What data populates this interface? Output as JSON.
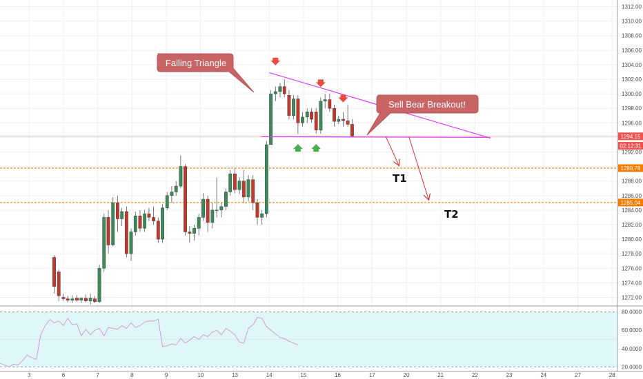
{
  "chart_data": [
    {
      "type": "candlestick",
      "title": "",
      "xlabel": "",
      "ylabel": "",
      "ylim": [
        1271,
        1313
      ],
      "y_ticks": [
        "1272.00",
        "1274.00",
        "1276.00",
        "1278.00",
        "1280.00",
        "1282.00",
        "1284.00",
        "1286.00",
        "1288.00",
        "1290.00",
        "1292.00",
        "1294.00",
        "1296.00",
        "1298.00",
        "1300.00",
        "1302.00",
        "1304.00",
        "1306.00",
        "1308.00",
        "1310.00",
        "1312.00"
      ],
      "x_ticks": [
        {
          "label": "3",
          "day": 3
        },
        {
          "label": "6",
          "day": 6
        },
        {
          "label": "7",
          "day": 7
        },
        {
          "label": "8",
          "day": 8
        },
        {
          "label": "9",
          "day": 9
        },
        {
          "label": "10",
          "day": 10
        },
        {
          "label": "13",
          "day": 13
        },
        {
          "label": "14",
          "day": 14
        },
        {
          "label": "15",
          "day": 15
        },
        {
          "label": "16",
          "day": 16
        },
        {
          "label": "17",
          "day": 17
        },
        {
          "label": "20",
          "day": 20
        },
        {
          "label": "21",
          "day": 21
        },
        {
          "label": "22",
          "day": 22
        },
        {
          "label": "23",
          "day": 23
        },
        {
          "label": "24",
          "day": 24
        },
        {
          "label": "27",
          "day": 27
        },
        {
          "label": "28",
          "day": 28
        }
      ],
      "candles": [
        {
          "t": 2.0,
          "o": 1277.5,
          "h": 1277.8,
          "l": 1272.5,
          "c": 1273.5
        },
        {
          "t": 2.17,
          "o": 1275.5,
          "h": 1275.8,
          "l": 1271.5,
          "c": 1272.2
        },
        {
          "t": 2.34,
          "o": 1272.0,
          "h": 1272.5,
          "l": 1271.5,
          "c": 1271.8
        },
        {
          "t": 2.5,
          "o": 1271.8,
          "h": 1272.2,
          "l": 1271.3,
          "c": 1271.6
        },
        {
          "t": 2.67,
          "o": 1271.6,
          "h": 1272.3,
          "l": 1271.2,
          "c": 1271.8
        },
        {
          "t": 2.84,
          "o": 1271.9,
          "h": 1272.3,
          "l": 1271.4,
          "c": 1271.6
        },
        {
          "t": 3.0,
          "o": 1271.6,
          "h": 1272.0,
          "l": 1271.2,
          "c": 1271.9
        },
        {
          "t": 3.17,
          "o": 1271.9,
          "h": 1272.4,
          "l": 1271.3,
          "c": 1271.5
        },
        {
          "t": 3.34,
          "o": 1271.5,
          "h": 1272.5,
          "l": 1271.0,
          "c": 1271.9
        },
        {
          "t": 3.5,
          "o": 1271.8,
          "h": 1272.2,
          "l": 1271.2,
          "c": 1271.4
        },
        {
          "t": 3.67,
          "o": 1271.4,
          "h": 1276.5,
          "l": 1271.2,
          "c": 1276.0
        },
        {
          "t": 3.84,
          "o": 1276.0,
          "h": 1283.5,
          "l": 1275.5,
          "c": 1283.0
        },
        {
          "t": 4.0,
          "o": 1283.0,
          "h": 1284.0,
          "l": 1278.0,
          "c": 1279.2
        },
        {
          "t": 4.17,
          "o": 1279.2,
          "h": 1285.8,
          "l": 1279.0,
          "c": 1285.0
        },
        {
          "t": 4.34,
          "o": 1285.0,
          "h": 1286.0,
          "l": 1281.0,
          "c": 1282.8
        },
        {
          "t": 4.5,
          "o": 1282.8,
          "h": 1284.3,
          "l": 1281.8,
          "c": 1283.8
        },
        {
          "t": 4.67,
          "o": 1283.8,
          "h": 1284.5,
          "l": 1277.5,
          "c": 1278.0
        },
        {
          "t": 4.84,
          "o": 1278.0,
          "h": 1281.5,
          "l": 1277.0,
          "c": 1281.0
        },
        {
          "t": 5.0,
          "o": 1281.0,
          "h": 1283.8,
          "l": 1280.5,
          "c": 1283.2
        },
        {
          "t": 5.17,
          "o": 1283.2,
          "h": 1284.0,
          "l": 1281.0,
          "c": 1281.5
        },
        {
          "t": 5.34,
          "o": 1281.5,
          "h": 1284.0,
          "l": 1281.0,
          "c": 1283.5
        },
        {
          "t": 5.5,
          "o": 1283.5,
          "h": 1284.3,
          "l": 1282.5,
          "c": 1283.0
        },
        {
          "t": 5.67,
          "o": 1283.0,
          "h": 1284.5,
          "l": 1282.0,
          "c": 1282.5
        },
        {
          "t": 5.84,
          "o": 1282.5,
          "h": 1283.0,
          "l": 1279.5,
          "c": 1280.0
        },
        {
          "t": 6.0,
          "o": 1280.0,
          "h": 1284.8,
          "l": 1279.5,
          "c": 1284.3
        },
        {
          "t": 6.17,
          "o": 1284.3,
          "h": 1286.5,
          "l": 1284.0,
          "c": 1286.0
        },
        {
          "t": 6.34,
          "o": 1286.0,
          "h": 1287.3,
          "l": 1285.0,
          "c": 1286.5
        },
        {
          "t": 6.5,
          "o": 1286.5,
          "h": 1288.0,
          "l": 1286.0,
          "c": 1287.3
        },
        {
          "t": 6.67,
          "o": 1287.3,
          "h": 1291.5,
          "l": 1287.0,
          "c": 1290.0
        },
        {
          "t": 6.84,
          "o": 1290.0,
          "h": 1290.3,
          "l": 1280.5,
          "c": 1281.0
        },
        {
          "t": 7.0,
          "o": 1281.0,
          "h": 1281.8,
          "l": 1279.5,
          "c": 1280.8
        },
        {
          "t": 7.17,
          "o": 1280.8,
          "h": 1282.0,
          "l": 1279.8,
          "c": 1281.5
        },
        {
          "t": 7.34,
          "o": 1281.5,
          "h": 1283.5,
          "l": 1280.5,
          "c": 1283.0
        },
        {
          "t": 7.5,
          "o": 1283.0,
          "h": 1286.3,
          "l": 1282.5,
          "c": 1285.5
        },
        {
          "t": 7.67,
          "o": 1285.5,
          "h": 1286.0,
          "l": 1281.0,
          "c": 1282.3
        },
        {
          "t": 7.84,
          "o": 1282.3,
          "h": 1285.0,
          "l": 1281.5,
          "c": 1284.0
        },
        {
          "t": 8.0,
          "o": 1284.0,
          "h": 1288.5,
          "l": 1283.0,
          "c": 1284.0
        },
        {
          "t": 8.17,
          "o": 1284.0,
          "h": 1285.0,
          "l": 1283.0,
          "c": 1284.5
        },
        {
          "t": 8.34,
          "o": 1284.5,
          "h": 1287.0,
          "l": 1284.0,
          "c": 1286.5
        },
        {
          "t": 8.5,
          "o": 1286.5,
          "h": 1289.5,
          "l": 1286.0,
          "c": 1289.0
        },
        {
          "t": 8.67,
          "o": 1289.0,
          "h": 1289.8,
          "l": 1286.3,
          "c": 1286.8
        },
        {
          "t": 8.84,
          "o": 1286.8,
          "h": 1288.5,
          "l": 1286.2,
          "c": 1288.0
        },
        {
          "t": 9.0,
          "o": 1288.0,
          "h": 1289.5,
          "l": 1285.0,
          "c": 1285.8
        },
        {
          "t": 9.17,
          "o": 1285.8,
          "h": 1288.8,
          "l": 1285.2,
          "c": 1288.2
        },
        {
          "t": 9.34,
          "o": 1288.2,
          "h": 1288.8,
          "l": 1284.0,
          "c": 1285.0
        },
        {
          "t": 9.5,
          "o": 1285.0,
          "h": 1285.5,
          "l": 1282.0,
          "c": 1283.0
        },
        {
          "t": 9.67,
          "o": 1283.0,
          "h": 1284.0,
          "l": 1282.0,
          "c": 1283.5
        },
        {
          "t": 9.84,
          "o": 1283.5,
          "h": 1293.5,
          "l": 1283.0,
          "c": 1293.0
        },
        {
          "t": 10.0,
          "o": 1293.0,
          "h": 1300.5,
          "l": 1293.0,
          "c": 1300.0
        },
        {
          "t": 10.17,
          "o": 1300.0,
          "h": 1301.0,
          "l": 1299.0,
          "c": 1300.3
        },
        {
          "t": 10.34,
          "o": 1300.3,
          "h": 1301.5,
          "l": 1299.5,
          "c": 1301.0
        },
        {
          "t": 10.5,
          "o": 1301.0,
          "h": 1302.0,
          "l": 1299.5,
          "c": 1300.0
        },
        {
          "t": 10.67,
          "o": 1299.8,
          "h": 1300.5,
          "l": 1296.5,
          "c": 1297.0
        },
        {
          "t": 10.84,
          "o": 1297.0,
          "h": 1299.8,
          "l": 1296.5,
          "c": 1299.3
        },
        {
          "t": 11.0,
          "o": 1299.3,
          "h": 1299.8,
          "l": 1294.5,
          "c": 1296.0
        },
        {
          "t": 11.17,
          "o": 1296.0,
          "h": 1297.5,
          "l": 1295.5,
          "c": 1296.8
        },
        {
          "t": 11.34,
          "o": 1296.8,
          "h": 1298.0,
          "l": 1296.0,
          "c": 1297.5
        },
        {
          "t": 11.5,
          "o": 1297.5,
          "h": 1298.0,
          "l": 1296.0,
          "c": 1296.5
        },
        {
          "t": 11.67,
          "o": 1297.5,
          "h": 1298.0,
          "l": 1294.5,
          "c": 1295.0
        },
        {
          "t": 11.84,
          "o": 1295.0,
          "h": 1299.5,
          "l": 1294.5,
          "c": 1299.0
        },
        {
          "t": 12.0,
          "o": 1299.0,
          "h": 1300.0,
          "l": 1298.0,
          "c": 1299.2
        },
        {
          "t": 12.17,
          "o": 1299.2,
          "h": 1300.0,
          "l": 1297.5,
          "c": 1298.0
        },
        {
          "t": 12.34,
          "o": 1298.0,
          "h": 1298.5,
          "l": 1295.5,
          "c": 1296.2
        },
        {
          "t": 12.5,
          "o": 1296.2,
          "h": 1297.0,
          "l": 1295.8,
          "c": 1296.5
        },
        {
          "t": 12.67,
          "o": 1296.5,
          "h": 1297.5,
          "l": 1295.5,
          "c": 1296.3
        },
        {
          "t": 12.84,
          "o": 1296.3,
          "h": 1298.5,
          "l": 1295.5,
          "c": 1295.8
        },
        {
          "t": 13.0,
          "o": 1295.8,
          "h": 1296.5,
          "l": 1294.0,
          "c": 1294.2
        }
      ],
      "indicator": {
        "name": "RSI",
        "ylim": [
          15,
          85
        ],
        "band": [
          20,
          80
        ],
        "y_ticks": [
          "20.0000",
          "40.0000",
          "60.0000",
          "80.0000"
        ],
        "t": [
          0.0,
          0.17,
          0.34,
          0.5,
          0.67,
          0.84,
          1.0,
          1.17,
          1.34,
          1.5,
          1.67,
          1.84,
          2.0,
          2.17,
          2.34,
          2.5,
          2.67,
          2.84,
          3.0,
          3.17,
          3.34,
          3.5,
          3.67,
          3.84,
          4.0,
          4.17,
          4.34,
          4.5,
          4.67,
          4.84,
          5.0,
          5.17,
          5.34,
          5.5,
          5.67,
          5.84,
          6.0,
          6.17,
          6.34,
          6.5,
          6.67,
          6.84,
          7.0,
          7.17,
          7.34,
          7.5,
          7.67,
          7.84,
          8.0,
          8.17,
          8.34,
          8.5,
          8.67,
          8.84,
          9.0,
          9.17,
          9.34,
          9.5,
          9.67,
          9.84,
          10.0,
          10.17,
          10.34,
          10.5,
          10.67,
          10.84,
          11.0
        ],
        "values": [
          24,
          22,
          20,
          23,
          22,
          27,
          33,
          30,
          28,
          55,
          65,
          72,
          68,
          70,
          65,
          73,
          66,
          67,
          54,
          61,
          55,
          60,
          62,
          54,
          63,
          62,
          61,
          65,
          62,
          68,
          63,
          65,
          69,
          70,
          70,
          72,
          42,
          43,
          45,
          44,
          51,
          46,
          49,
          53,
          50,
          55,
          53,
          58,
          60,
          55,
          62,
          59,
          55,
          47,
          46,
          62,
          66,
          74,
          73,
          64,
          60,
          56,
          52,
          51,
          48,
          46,
          44
        ]
      },
      "lines": [
        {
          "name": "horizontal-1289.78",
          "y": 1289.78,
          "color": "#f57c00"
        },
        {
          "name": "horizontal-1285.04",
          "y": 1285.04,
          "color": "#f57c00"
        },
        {
          "name": "current-price",
          "y": 1294.15,
          "color": "#ef9a9a"
        }
      ],
      "trendlines": [
        {
          "name": "triangle-upper",
          "from": {
            "t": 9.95,
            "y": 1302.9
          },
          "to": {
            "t": 15.05,
            "y": 1293.9
          },
          "color": "#e040fb"
        },
        {
          "name": "triangle-lower",
          "from": {
            "t": 9.65,
            "y": 1294.1
          },
          "to": {
            "t": 15.05,
            "y": 1294.0
          },
          "color": "#e040fb"
        }
      ],
      "arrows": [
        {
          "name": "t1-arrow-upper",
          "from": {
            "t": 13.2,
            "y": 1294.1
          },
          "to": {
            "t": 13.6,
            "y": 1289.9
          },
          "color": "#d32f2f"
        },
        {
          "name": "t2-arrow-upper",
          "from": {
            "t": 14.05,
            "y": 1294.1
          },
          "to": {
            "t": 14.7,
            "y": 1285.2
          },
          "color": "#d32f2f"
        }
      ],
      "markers": [
        {
          "kind": "down",
          "t": 10.17,
          "y": 1304.4,
          "color": "#e74c3c"
        },
        {
          "kind": "down",
          "t": 11.84,
          "y": 1301.4,
          "color": "#e74c3c"
        },
        {
          "kind": "down",
          "t": 12.67,
          "y": 1299.3,
          "color": "#e74c3c"
        },
        {
          "kind": "up",
          "t": 11.0,
          "y": 1292.6,
          "color": "#4caf50"
        },
        {
          "kind": "up",
          "t": 11.67,
          "y": 1292.6,
          "color": "#4caf50"
        }
      ],
      "callouts": [
        {
          "text": "Falling Triangle",
          "color": "#c86464"
        },
        {
          "text": "Sell Bear Breakout!",
          "color": "#c86464"
        }
      ],
      "targets": [
        "T1",
        "T2"
      ],
      "price_tags": [
        {
          "label": "1294.15",
          "y": 1294.15,
          "color": "#ef5350"
        },
        {
          "label": "02:12:31",
          "y": 1292.85,
          "color": "#ef5350"
        },
        {
          "label": "1289.78",
          "y": 1289.78,
          "color": "#f57c00"
        },
        {
          "label": "1285.04",
          "y": 1285.04,
          "color": "#f57c00"
        }
      ],
      "colors": {
        "up": "#3c8a5c",
        "down": "#c0392b",
        "rsi": "#d29bd2",
        "rsi_band": "#e0f7fa"
      }
    }
  ]
}
